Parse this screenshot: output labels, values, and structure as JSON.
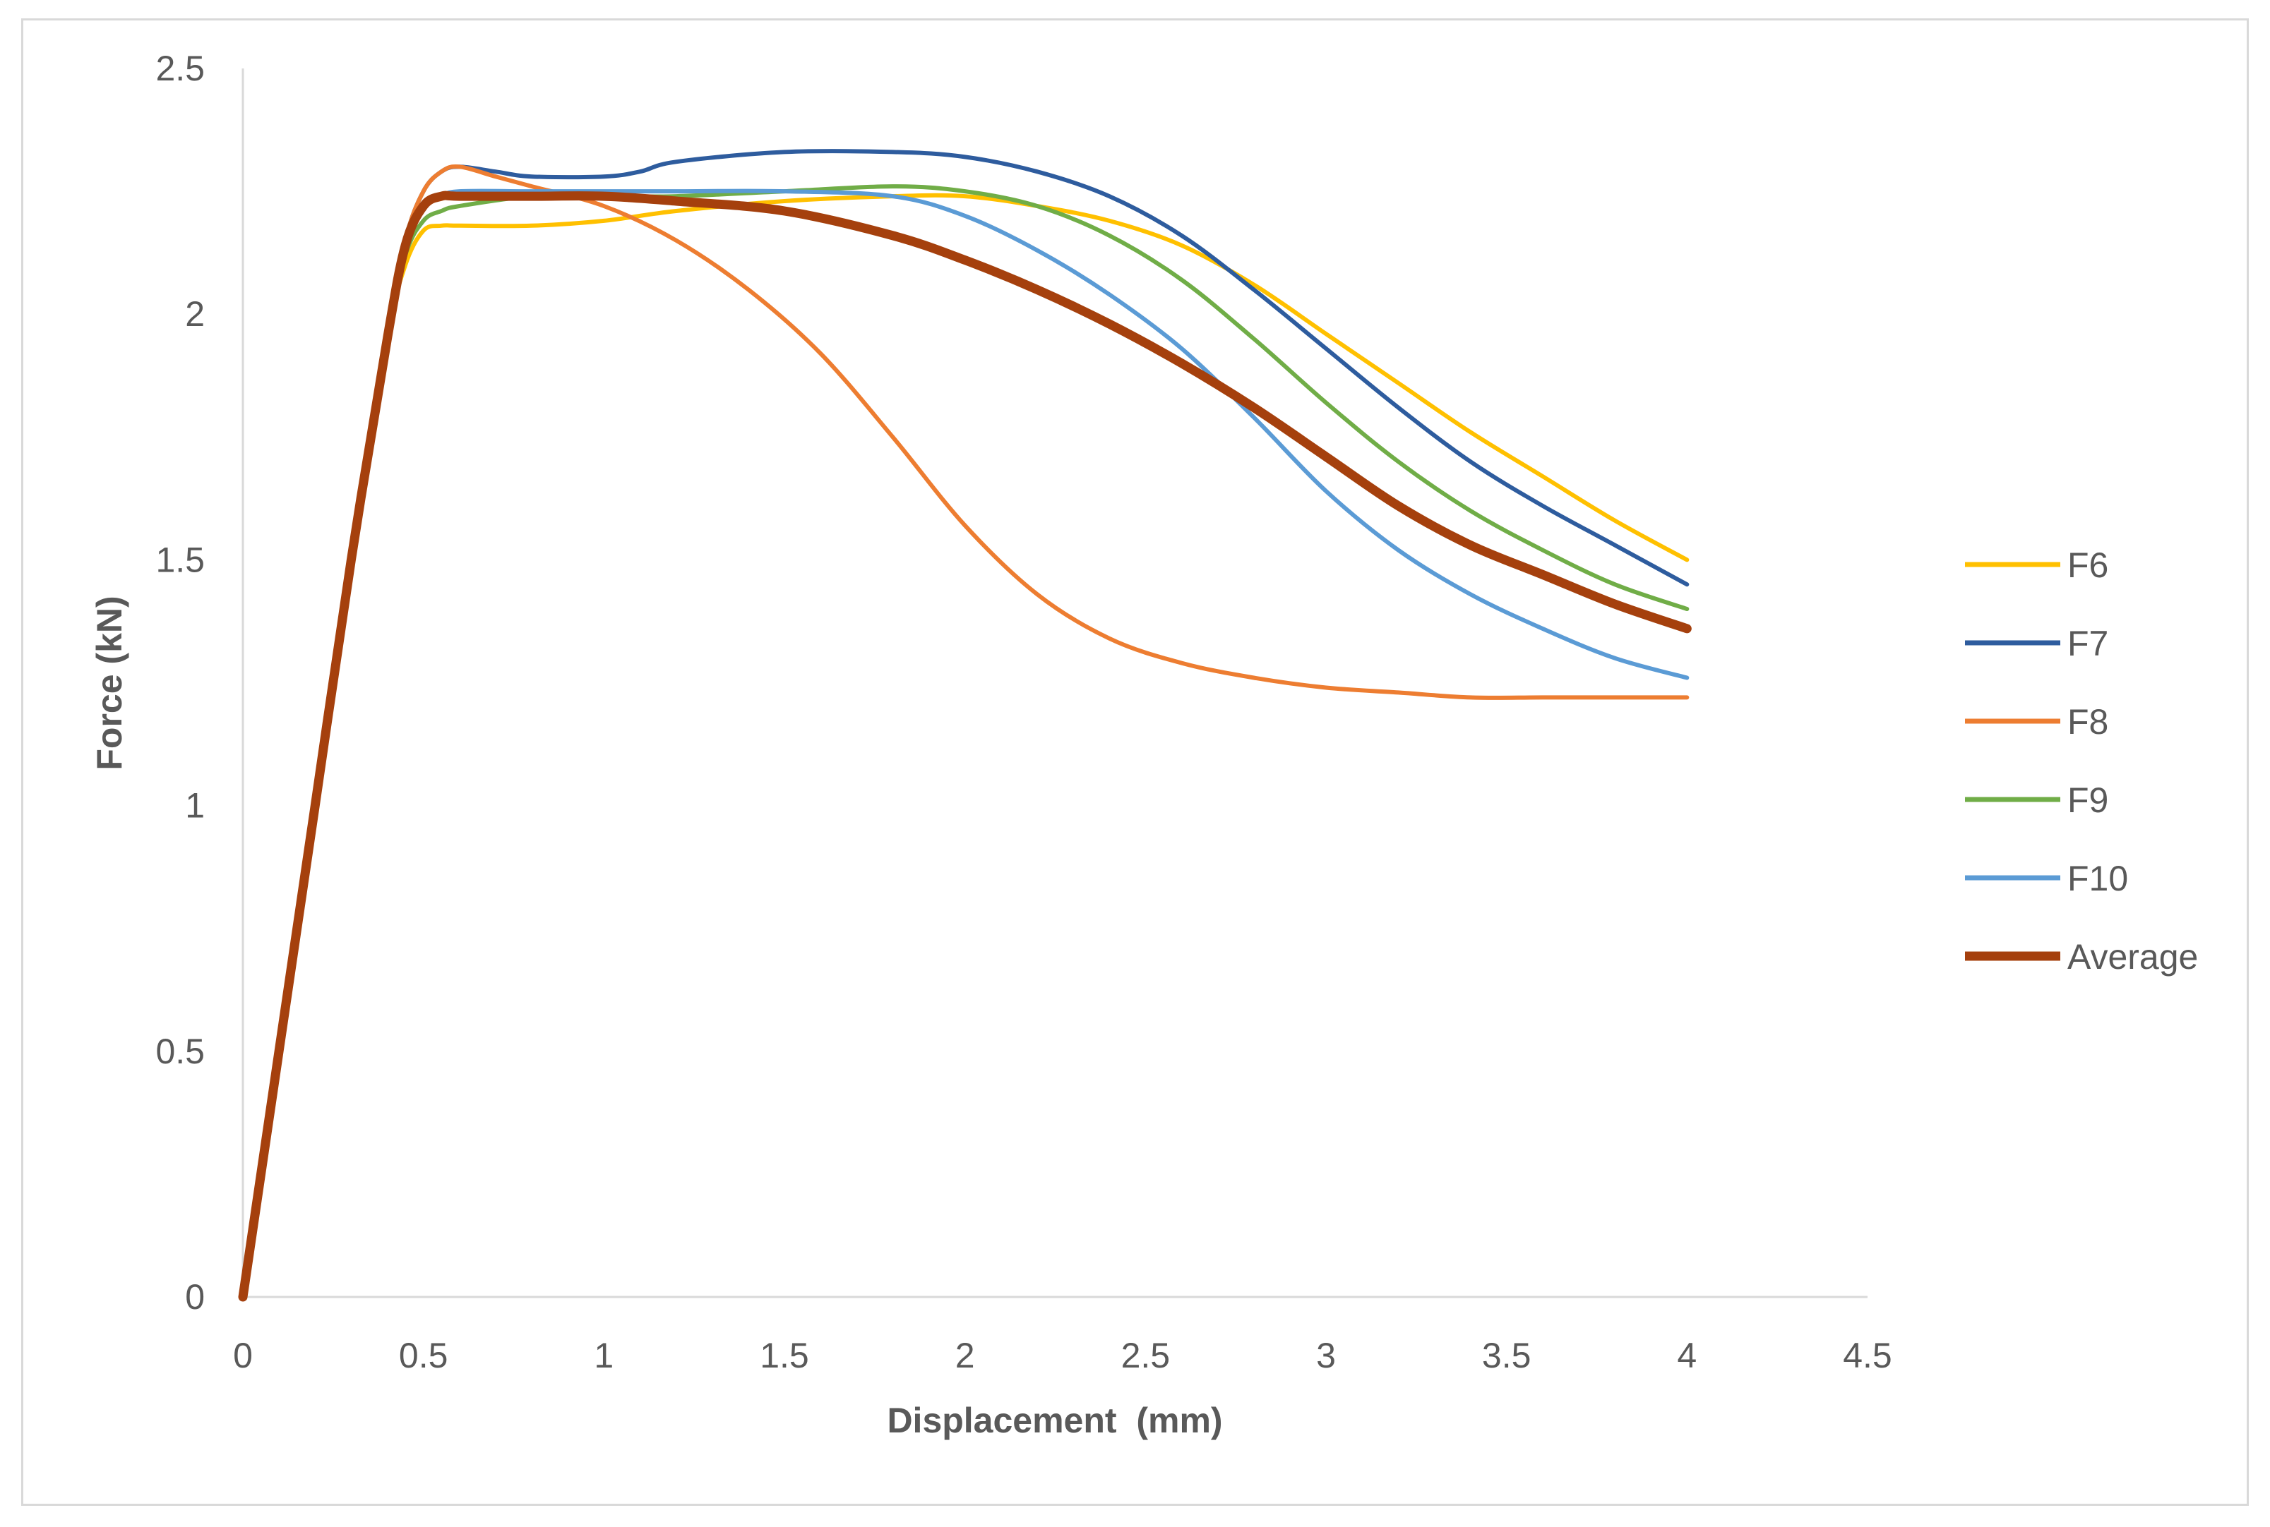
{
  "chart_data": {
    "type": "line",
    "title": "",
    "xlabel": "Displacement  (mm)",
    "ylabel": "Force (kN)",
    "xlim": [
      0,
      4.5
    ],
    "ylim": [
      0,
      2.5
    ],
    "x_ticks": [
      "0",
      "0.5",
      "1",
      "1.5",
      "2",
      "2.5",
      "3",
      "3.5",
      "4",
      "4.5"
    ],
    "y_ticks": [
      "0",
      "0.5",
      "1",
      "1.5",
      "2",
      "2.5"
    ],
    "grid": false,
    "legend_position": "right",
    "series": [
      {
        "name": "F6",
        "color": "#FFC000",
        "width": "thin",
        "points": [
          [
            0,
            0
          ],
          [
            0.1,
            0.5
          ],
          [
            0.2,
            1.0
          ],
          [
            0.3,
            1.5
          ],
          [
            0.4,
            1.95
          ],
          [
            0.45,
            2.1
          ],
          [
            0.5,
            2.17
          ],
          [
            0.55,
            2.18
          ],
          [
            0.6,
            2.18
          ],
          [
            0.8,
            2.18
          ],
          [
            1.0,
            2.19
          ],
          [
            1.2,
            2.21
          ],
          [
            1.5,
            2.23
          ],
          [
            1.8,
            2.24
          ],
          [
            2.0,
            2.24
          ],
          [
            2.2,
            2.22
          ],
          [
            2.4,
            2.19
          ],
          [
            2.6,
            2.14
          ],
          [
            2.8,
            2.06
          ],
          [
            3.0,
            1.96
          ],
          [
            3.2,
            1.86
          ],
          [
            3.4,
            1.76
          ],
          [
            3.6,
            1.67
          ],
          [
            3.8,
            1.58
          ],
          [
            4.0,
            1.5
          ]
        ]
      },
      {
        "name": "F7",
        "color": "#2E5C9E",
        "width": "thin",
        "points": [
          [
            0,
            0
          ],
          [
            0.1,
            0.5
          ],
          [
            0.2,
            1.0
          ],
          [
            0.3,
            1.5
          ],
          [
            0.4,
            1.95
          ],
          [
            0.45,
            2.15
          ],
          [
            0.5,
            2.25
          ],
          [
            0.55,
            2.29
          ],
          [
            0.6,
            2.3
          ],
          [
            0.7,
            2.29
          ],
          [
            0.8,
            2.28
          ],
          [
            1.0,
            2.28
          ],
          [
            1.1,
            2.29
          ],
          [
            1.2,
            2.31
          ],
          [
            1.5,
            2.33
          ],
          [
            1.8,
            2.33
          ],
          [
            2.0,
            2.32
          ],
          [
            2.2,
            2.29
          ],
          [
            2.4,
            2.24
          ],
          [
            2.6,
            2.16
          ],
          [
            2.8,
            2.05
          ],
          [
            3.0,
            1.93
          ],
          [
            3.2,
            1.81
          ],
          [
            3.4,
            1.7
          ],
          [
            3.6,
            1.61
          ],
          [
            3.8,
            1.53
          ],
          [
            4.0,
            1.45
          ]
        ]
      },
      {
        "name": "F8",
        "color": "#ED7D31",
        "width": "thin",
        "points": [
          [
            0,
            0
          ],
          [
            0.1,
            0.5
          ],
          [
            0.2,
            1.0
          ],
          [
            0.3,
            1.5
          ],
          [
            0.4,
            1.95
          ],
          [
            0.45,
            2.15
          ],
          [
            0.5,
            2.25
          ],
          [
            0.55,
            2.29
          ],
          [
            0.6,
            2.3
          ],
          [
            0.7,
            2.28
          ],
          [
            0.8,
            2.26
          ],
          [
            1.0,
            2.22
          ],
          [
            1.2,
            2.15
          ],
          [
            1.4,
            2.05
          ],
          [
            1.6,
            1.92
          ],
          [
            1.8,
            1.75
          ],
          [
            2.0,
            1.57
          ],
          [
            2.2,
            1.43
          ],
          [
            2.4,
            1.34
          ],
          [
            2.6,
            1.29
          ],
          [
            2.8,
            1.26
          ],
          [
            3.0,
            1.24
          ],
          [
            3.2,
            1.23
          ],
          [
            3.4,
            1.22
          ],
          [
            3.6,
            1.22
          ],
          [
            3.8,
            1.22
          ],
          [
            4.0,
            1.22
          ]
        ]
      },
      {
        "name": "F9",
        "color": "#70AD47",
        "width": "thin",
        "points": [
          [
            0,
            0
          ],
          [
            0.1,
            0.5
          ],
          [
            0.2,
            1.0
          ],
          [
            0.3,
            1.5
          ],
          [
            0.4,
            1.95
          ],
          [
            0.45,
            2.12
          ],
          [
            0.5,
            2.19
          ],
          [
            0.55,
            2.21
          ],
          [
            0.6,
            2.22
          ],
          [
            0.8,
            2.24
          ],
          [
            1.0,
            2.24
          ],
          [
            1.2,
            2.24
          ],
          [
            1.5,
            2.25
          ],
          [
            1.8,
            2.26
          ],
          [
            2.0,
            2.25
          ],
          [
            2.2,
            2.22
          ],
          [
            2.4,
            2.16
          ],
          [
            2.6,
            2.07
          ],
          [
            2.8,
            1.95
          ],
          [
            3.0,
            1.82
          ],
          [
            3.2,
            1.7
          ],
          [
            3.4,
            1.6
          ],
          [
            3.6,
            1.52
          ],
          [
            3.8,
            1.45
          ],
          [
            4.0,
            1.4
          ]
        ]
      },
      {
        "name": "F10",
        "color": "#5B9BD5",
        "width": "thin",
        "points": [
          [
            0,
            0
          ],
          [
            0.1,
            0.5
          ],
          [
            0.2,
            1.0
          ],
          [
            0.3,
            1.5
          ],
          [
            0.4,
            1.95
          ],
          [
            0.45,
            2.14
          ],
          [
            0.5,
            2.22
          ],
          [
            0.55,
            2.24
          ],
          [
            0.6,
            2.25
          ],
          [
            0.8,
            2.25
          ],
          [
            1.0,
            2.25
          ],
          [
            1.2,
            2.25
          ],
          [
            1.5,
            2.25
          ],
          [
            1.8,
            2.24
          ],
          [
            2.0,
            2.2
          ],
          [
            2.2,
            2.13
          ],
          [
            2.4,
            2.04
          ],
          [
            2.6,
            1.93
          ],
          [
            2.8,
            1.79
          ],
          [
            3.0,
            1.64
          ],
          [
            3.2,
            1.52
          ],
          [
            3.4,
            1.43
          ],
          [
            3.6,
            1.36
          ],
          [
            3.8,
            1.3
          ],
          [
            4.0,
            1.26
          ]
        ]
      },
      {
        "name": "Average",
        "color": "#A5400D",
        "width": "thick",
        "points": [
          [
            0,
            0
          ],
          [
            0.1,
            0.5
          ],
          [
            0.2,
            1.0
          ],
          [
            0.3,
            1.5
          ],
          [
            0.4,
            1.95
          ],
          [
            0.45,
            2.14
          ],
          [
            0.5,
            2.22
          ],
          [
            0.55,
            2.24
          ],
          [
            0.6,
            2.24
          ],
          [
            0.8,
            2.24
          ],
          [
            1.0,
            2.24
          ],
          [
            1.2,
            2.23
          ],
          [
            1.5,
            2.21
          ],
          [
            1.8,
            2.16
          ],
          [
            2.0,
            2.11
          ],
          [
            2.2,
            2.05
          ],
          [
            2.4,
            1.98
          ],
          [
            2.6,
            1.9
          ],
          [
            2.8,
            1.81
          ],
          [
            3.0,
            1.71
          ],
          [
            3.2,
            1.61
          ],
          [
            3.4,
            1.53
          ],
          [
            3.6,
            1.47
          ],
          [
            3.8,
            1.41
          ],
          [
            4.0,
            1.36
          ]
        ]
      }
    ]
  }
}
